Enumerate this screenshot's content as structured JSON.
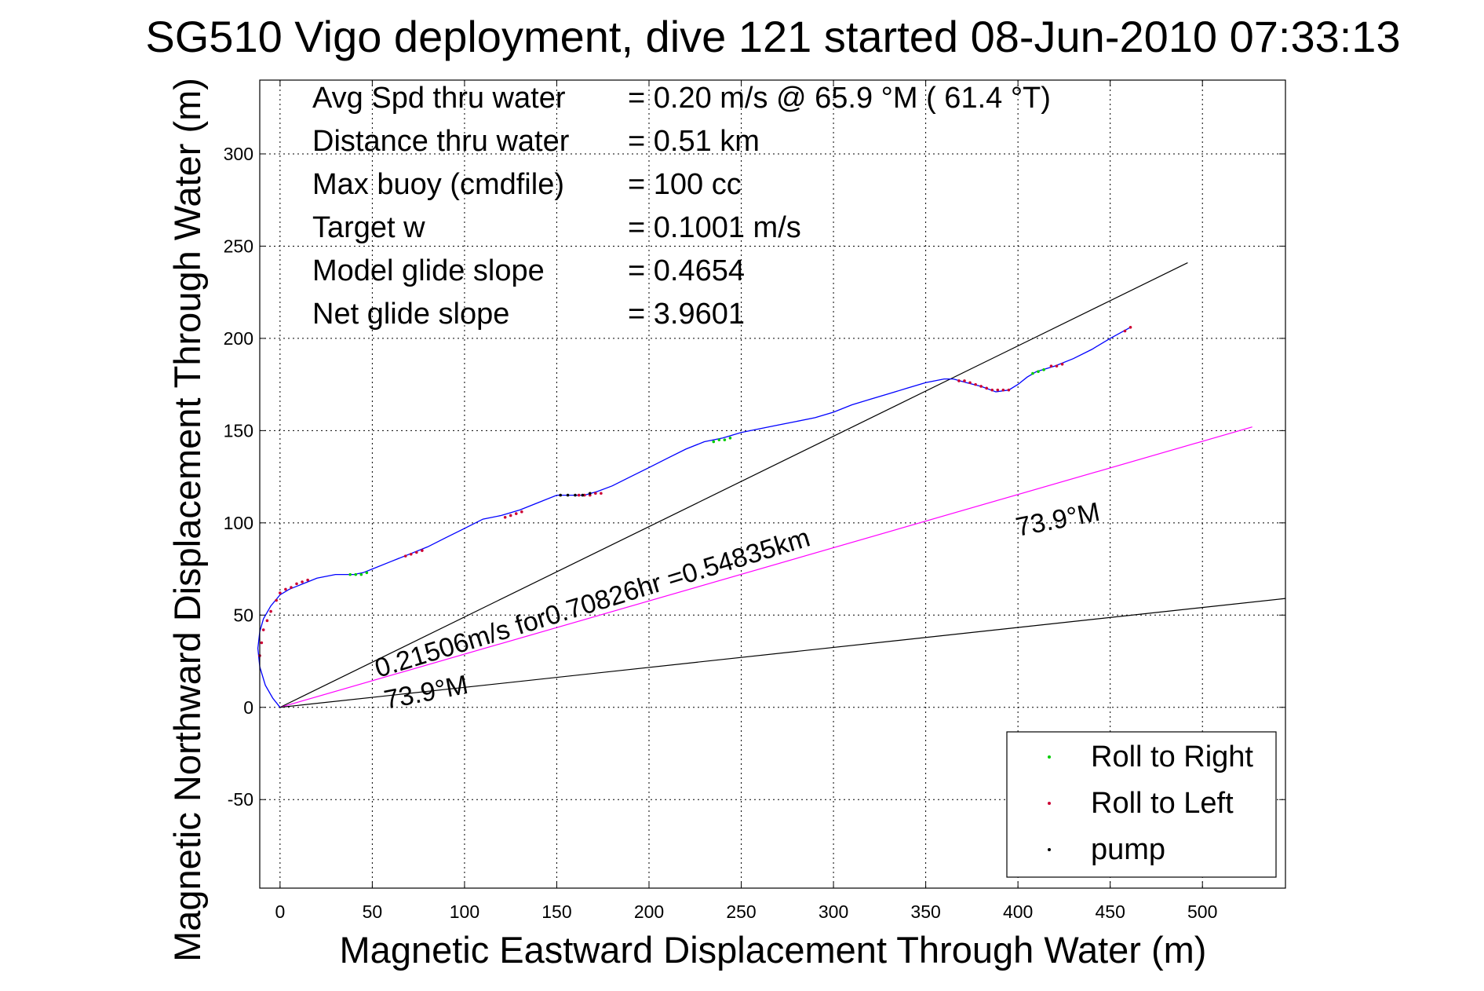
{
  "chart_data": {
    "type": "line",
    "title": "SG510 Vigo deployment, dive 121 started 08-Jun-2010 07:33:13",
    "xlabel": "Magnetic Eastward Displacement Through Water (m)",
    "ylabel": "Magnetic Northward Displacement Through Water (m)",
    "xlim": [
      -11,
      545
    ],
    "ylim": [
      -98,
      340
    ],
    "xticks": [
      0,
      50,
      100,
      150,
      200,
      250,
      300,
      350,
      400,
      450,
      500
    ],
    "yticks": [
      -50,
      0,
      50,
      100,
      150,
      200,
      250,
      300
    ],
    "grid": true,
    "legend_placement": "bottom-right",
    "info_lines": [
      {
        "label": "Avg Spd thru water",
        "value": "=  0.20 m/s @  65.9 °M ( 61.4 °T)"
      },
      {
        "label": "Distance thru water",
        "value": "=  0.51 km"
      },
      {
        "label": "Max buoy (cmdfile)",
        "value": "= 100 cc"
      },
      {
        "label": "Target w",
        "value": "= 0.1001 m/s"
      },
      {
        "label": "Model glide slope",
        "value": "= 0.4654"
      },
      {
        "label": "Net glide slope",
        "value": "= 3.9601"
      }
    ],
    "annotations": {
      "speed_text": "0.21506m/s for0.70826hr =0.54835km",
      "heading_label_left": "73.9°M",
      "heading_label_right": "73.9°M"
    },
    "reference_lines": [
      {
        "color": "#000000",
        "x": [
          0,
          492
        ],
        "y": [
          0,
          241
        ]
      },
      {
        "color": "#ff00ff",
        "x": [
          0,
          527
        ],
        "y": [
          0,
          152
        ]
      },
      {
        "color": "#000000",
        "x": [
          0,
          545
        ],
        "y": [
          0,
          59
        ]
      }
    ],
    "track": {
      "color": "#0000ff",
      "x": [
        0,
        -4,
        -8,
        -11,
        -12,
        -11,
        -9,
        -5,
        0,
        5,
        10,
        15,
        20,
        30,
        40,
        45,
        50,
        60,
        70,
        80,
        90,
        100,
        110,
        120,
        130,
        140,
        150,
        158,
        165,
        172,
        180,
        190,
        200,
        210,
        220,
        230,
        240,
        250,
        260,
        270,
        280,
        290,
        300,
        310,
        320,
        330,
        340,
        350,
        360,
        365,
        372,
        380,
        388,
        395,
        400,
        405,
        410,
        420,
        430,
        440,
        450,
        461
      ],
      "y": [
        0,
        5,
        12,
        22,
        32,
        41,
        48,
        55,
        61,
        64,
        66,
        68,
        70,
        72,
        72,
        73,
        75,
        79,
        83,
        87,
        92,
        97,
        102,
        104,
        107,
        111,
        115,
        115,
        115,
        117,
        120,
        125,
        130,
        135,
        140,
        144,
        146,
        149,
        151,
        153,
        155,
        157,
        160,
        164,
        167,
        170,
        173,
        176,
        178,
        178,
        176,
        174,
        171,
        172,
        175,
        179,
        182,
        185,
        189,
        194,
        200,
        206
      ]
    },
    "roll_right": {
      "color": "#00cc00",
      "x": [
        38,
        41,
        44,
        47,
        235,
        238,
        241,
        244,
        408,
        411,
        414
      ],
      "y": [
        72,
        72,
        72,
        73,
        144,
        145,
        145,
        146,
        181,
        182,
        183
      ]
    },
    "roll_left": {
      "color": "#cc0033",
      "x": [
        -11,
        -10,
        -9,
        -7,
        -5,
        -2,
        0,
        3,
        6,
        9,
        12,
        15,
        68,
        71,
        74,
        77,
        122,
        125,
        128,
        131,
        162,
        165,
        168,
        171,
        174,
        368,
        371,
        374,
        377,
        380,
        383,
        386,
        389,
        392,
        395,
        418,
        421,
        424,
        458,
        461
      ],
      "y": [
        28,
        35,
        42,
        47,
        52,
        58,
        62,
        64,
        65,
        67,
        68,
        69,
        82,
        83,
        84,
        85,
        103,
        104,
        105,
        106,
        115,
        115,
        115,
        116,
        116,
        177,
        177,
        176,
        175,
        174,
        173,
        172,
        172,
        172,
        172,
        185,
        185,
        186,
        204,
        206
      ]
    },
    "pump": {
      "color": "#000000",
      "x": [
        152,
        156,
        160,
        164,
        168
      ],
      "y": [
        115,
        115,
        115,
        115,
        116
      ]
    },
    "legend": [
      {
        "label": "Roll to Right",
        "color": "#00cc00"
      },
      {
        "label": "Roll to Left",
        "color": "#cc0033"
      },
      {
        "label": "pump",
        "color": "#000000"
      }
    ]
  }
}
